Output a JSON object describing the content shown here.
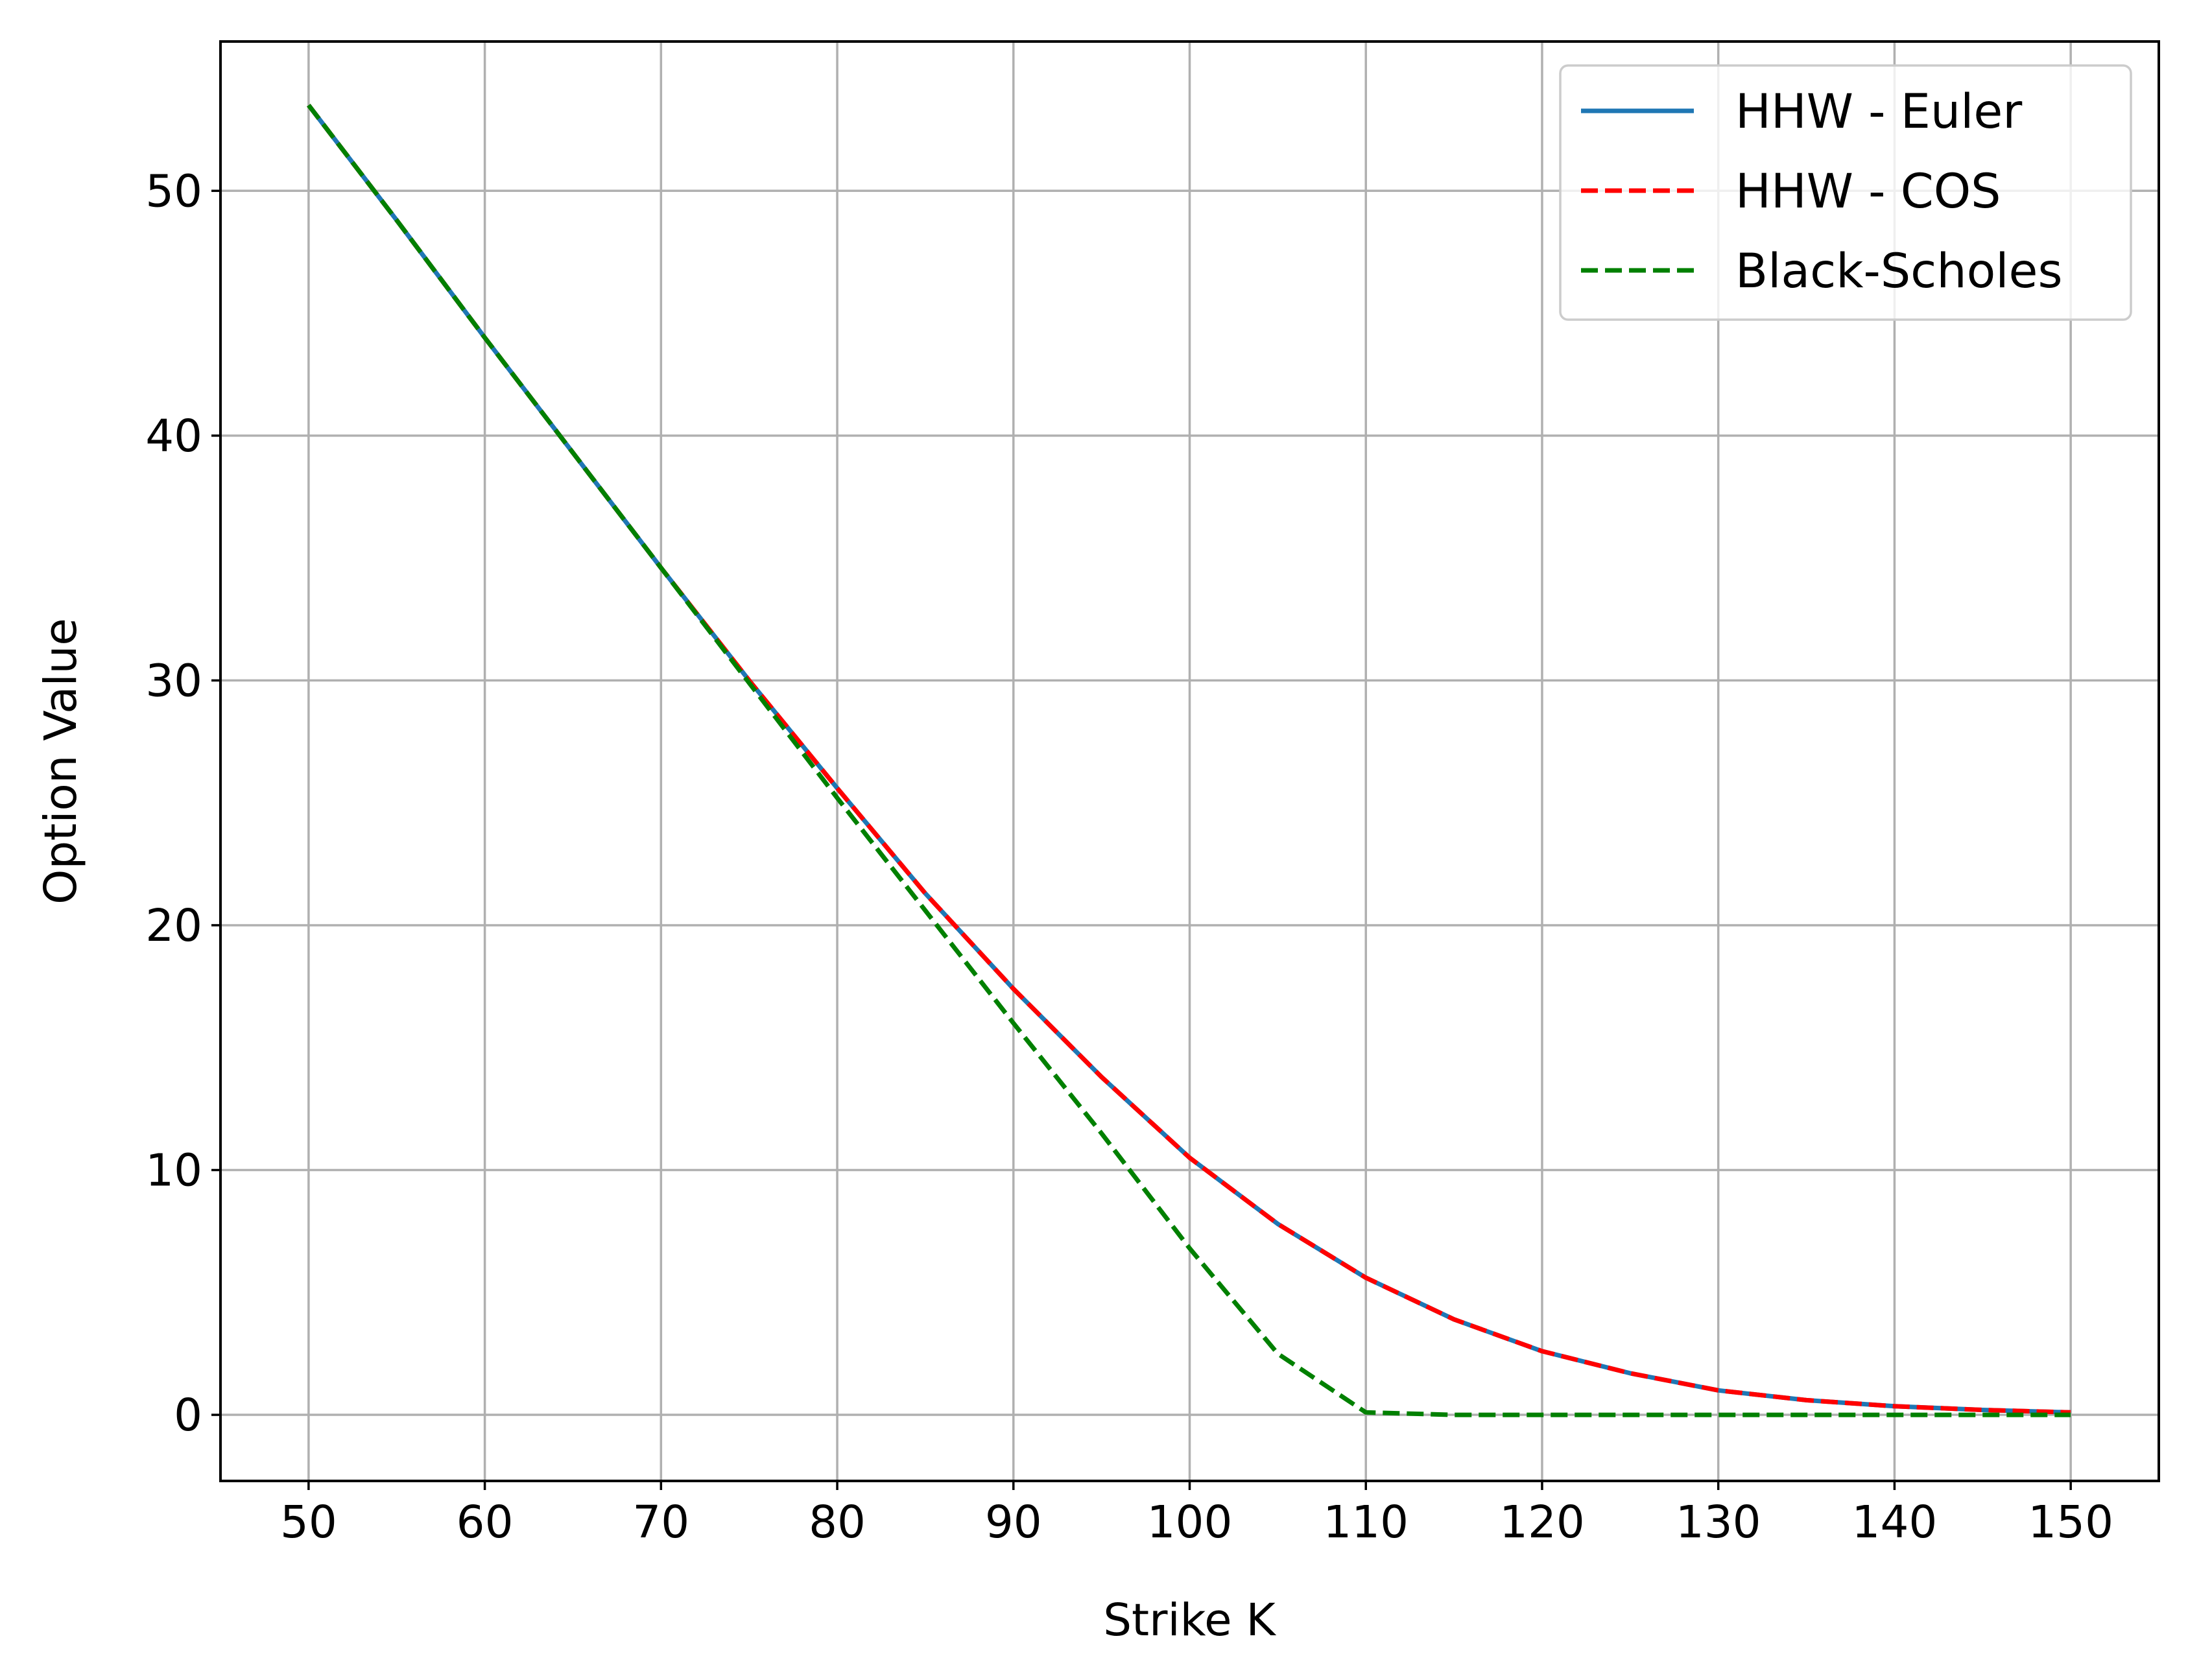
{
  "chart_data": {
    "type": "line",
    "title": "",
    "xlabel": "Strike K",
    "ylabel": "Option Value",
    "xlim": [
      45,
      155
    ],
    "ylim": [
      -2.7,
      56.1
    ],
    "xticks": [
      50,
      60,
      70,
      80,
      90,
      100,
      110,
      120,
      130,
      140,
      150
    ],
    "yticks": [
      0,
      10,
      20,
      30,
      40,
      50
    ],
    "grid": true,
    "legend_position": "top-right",
    "x": [
      50,
      55,
      60,
      65,
      70,
      75,
      80,
      85,
      90,
      95,
      100,
      105,
      110,
      115,
      120,
      125,
      130,
      135,
      140,
      145,
      150
    ],
    "series": [
      {
        "name": "HHW - Euler",
        "color": "#1f77b4",
        "linestyle": "solid",
        "values": [
          53.5,
          48.8,
          44.0,
          39.3,
          34.6,
          30.0,
          25.6,
          21.3,
          17.4,
          13.8,
          10.5,
          7.8,
          5.6,
          3.9,
          2.6,
          1.7,
          1.0,
          0.6,
          0.35,
          0.2,
          0.1
        ]
      },
      {
        "name": "HHW - COS",
        "color": "#ff0000",
        "linestyle": "dashed",
        "values": [
          53.5,
          48.8,
          44.0,
          39.3,
          34.6,
          30.0,
          25.6,
          21.3,
          17.4,
          13.8,
          10.5,
          7.8,
          5.6,
          3.9,
          2.6,
          1.7,
          1.0,
          0.6,
          0.35,
          0.2,
          0.1
        ]
      },
      {
        "name": "Black-Scholes",
        "color": "#008000",
        "linestyle": "dashed",
        "values": [
          53.5,
          48.8,
          44.0,
          39.3,
          34.6,
          29.9,
          25.2,
          20.6,
          16.0,
          11.5,
          6.8,
          2.5,
          0.1,
          0,
          0,
          0,
          0,
          0,
          0,
          0,
          0
        ]
      }
    ]
  }
}
